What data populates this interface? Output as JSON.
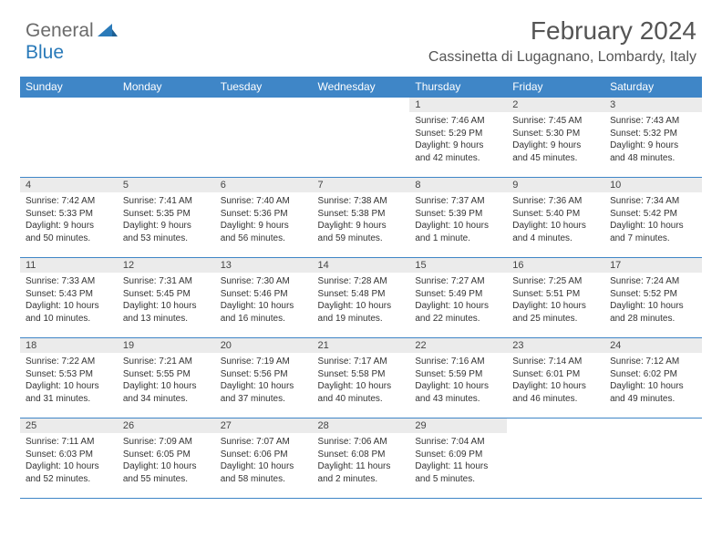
{
  "logo": {
    "general": "General",
    "blue": "Blue"
  },
  "title": "February 2024",
  "location": "Cassinetta di Lugagnano, Lombardy, Italy",
  "colors": {
    "header_bg": "#3f86c7",
    "header_text": "#ffffff",
    "daynum_bg": "#ebebeb",
    "rule": "#3f86c7",
    "body_text": "#333333",
    "title_text": "#555555",
    "logo_gray": "#6b6b6b",
    "logo_blue": "#2a7ab9",
    "page_bg": "#ffffff"
  },
  "weekdays": [
    "Sunday",
    "Monday",
    "Tuesday",
    "Wednesday",
    "Thursday",
    "Friday",
    "Saturday"
  ],
  "weeks": [
    [
      null,
      null,
      null,
      null,
      {
        "n": "1",
        "sr": "Sunrise: 7:46 AM",
        "ss": "Sunset: 5:29 PM",
        "d1": "Daylight: 9 hours",
        "d2": "and 42 minutes."
      },
      {
        "n": "2",
        "sr": "Sunrise: 7:45 AM",
        "ss": "Sunset: 5:30 PM",
        "d1": "Daylight: 9 hours",
        "d2": "and 45 minutes."
      },
      {
        "n": "3",
        "sr": "Sunrise: 7:43 AM",
        "ss": "Sunset: 5:32 PM",
        "d1": "Daylight: 9 hours",
        "d2": "and 48 minutes."
      }
    ],
    [
      {
        "n": "4",
        "sr": "Sunrise: 7:42 AM",
        "ss": "Sunset: 5:33 PM",
        "d1": "Daylight: 9 hours",
        "d2": "and 50 minutes."
      },
      {
        "n": "5",
        "sr": "Sunrise: 7:41 AM",
        "ss": "Sunset: 5:35 PM",
        "d1": "Daylight: 9 hours",
        "d2": "and 53 minutes."
      },
      {
        "n": "6",
        "sr": "Sunrise: 7:40 AM",
        "ss": "Sunset: 5:36 PM",
        "d1": "Daylight: 9 hours",
        "d2": "and 56 minutes."
      },
      {
        "n": "7",
        "sr": "Sunrise: 7:38 AM",
        "ss": "Sunset: 5:38 PM",
        "d1": "Daylight: 9 hours",
        "d2": "and 59 minutes."
      },
      {
        "n": "8",
        "sr": "Sunrise: 7:37 AM",
        "ss": "Sunset: 5:39 PM",
        "d1": "Daylight: 10 hours",
        "d2": "and 1 minute."
      },
      {
        "n": "9",
        "sr": "Sunrise: 7:36 AM",
        "ss": "Sunset: 5:40 PM",
        "d1": "Daylight: 10 hours",
        "d2": "and 4 minutes."
      },
      {
        "n": "10",
        "sr": "Sunrise: 7:34 AM",
        "ss": "Sunset: 5:42 PM",
        "d1": "Daylight: 10 hours",
        "d2": "and 7 minutes."
      }
    ],
    [
      {
        "n": "11",
        "sr": "Sunrise: 7:33 AM",
        "ss": "Sunset: 5:43 PM",
        "d1": "Daylight: 10 hours",
        "d2": "and 10 minutes."
      },
      {
        "n": "12",
        "sr": "Sunrise: 7:31 AM",
        "ss": "Sunset: 5:45 PM",
        "d1": "Daylight: 10 hours",
        "d2": "and 13 minutes."
      },
      {
        "n": "13",
        "sr": "Sunrise: 7:30 AM",
        "ss": "Sunset: 5:46 PM",
        "d1": "Daylight: 10 hours",
        "d2": "and 16 minutes."
      },
      {
        "n": "14",
        "sr": "Sunrise: 7:28 AM",
        "ss": "Sunset: 5:48 PM",
        "d1": "Daylight: 10 hours",
        "d2": "and 19 minutes."
      },
      {
        "n": "15",
        "sr": "Sunrise: 7:27 AM",
        "ss": "Sunset: 5:49 PM",
        "d1": "Daylight: 10 hours",
        "d2": "and 22 minutes."
      },
      {
        "n": "16",
        "sr": "Sunrise: 7:25 AM",
        "ss": "Sunset: 5:51 PM",
        "d1": "Daylight: 10 hours",
        "d2": "and 25 minutes."
      },
      {
        "n": "17",
        "sr": "Sunrise: 7:24 AM",
        "ss": "Sunset: 5:52 PM",
        "d1": "Daylight: 10 hours",
        "d2": "and 28 minutes."
      }
    ],
    [
      {
        "n": "18",
        "sr": "Sunrise: 7:22 AM",
        "ss": "Sunset: 5:53 PM",
        "d1": "Daylight: 10 hours",
        "d2": "and 31 minutes."
      },
      {
        "n": "19",
        "sr": "Sunrise: 7:21 AM",
        "ss": "Sunset: 5:55 PM",
        "d1": "Daylight: 10 hours",
        "d2": "and 34 minutes."
      },
      {
        "n": "20",
        "sr": "Sunrise: 7:19 AM",
        "ss": "Sunset: 5:56 PM",
        "d1": "Daylight: 10 hours",
        "d2": "and 37 minutes."
      },
      {
        "n": "21",
        "sr": "Sunrise: 7:17 AM",
        "ss": "Sunset: 5:58 PM",
        "d1": "Daylight: 10 hours",
        "d2": "and 40 minutes."
      },
      {
        "n": "22",
        "sr": "Sunrise: 7:16 AM",
        "ss": "Sunset: 5:59 PM",
        "d1": "Daylight: 10 hours",
        "d2": "and 43 minutes."
      },
      {
        "n": "23",
        "sr": "Sunrise: 7:14 AM",
        "ss": "Sunset: 6:01 PM",
        "d1": "Daylight: 10 hours",
        "d2": "and 46 minutes."
      },
      {
        "n": "24",
        "sr": "Sunrise: 7:12 AM",
        "ss": "Sunset: 6:02 PM",
        "d1": "Daylight: 10 hours",
        "d2": "and 49 minutes."
      }
    ],
    [
      {
        "n": "25",
        "sr": "Sunrise: 7:11 AM",
        "ss": "Sunset: 6:03 PM",
        "d1": "Daylight: 10 hours",
        "d2": "and 52 minutes."
      },
      {
        "n": "26",
        "sr": "Sunrise: 7:09 AM",
        "ss": "Sunset: 6:05 PM",
        "d1": "Daylight: 10 hours",
        "d2": "and 55 minutes."
      },
      {
        "n": "27",
        "sr": "Sunrise: 7:07 AM",
        "ss": "Sunset: 6:06 PM",
        "d1": "Daylight: 10 hours",
        "d2": "and 58 minutes."
      },
      {
        "n": "28",
        "sr": "Sunrise: 7:06 AM",
        "ss": "Sunset: 6:08 PM",
        "d1": "Daylight: 11 hours",
        "d2": "and 2 minutes."
      },
      {
        "n": "29",
        "sr": "Sunrise: 7:04 AM",
        "ss": "Sunset: 6:09 PM",
        "d1": "Daylight: 11 hours",
        "d2": "and 5 minutes."
      },
      null,
      null
    ]
  ]
}
